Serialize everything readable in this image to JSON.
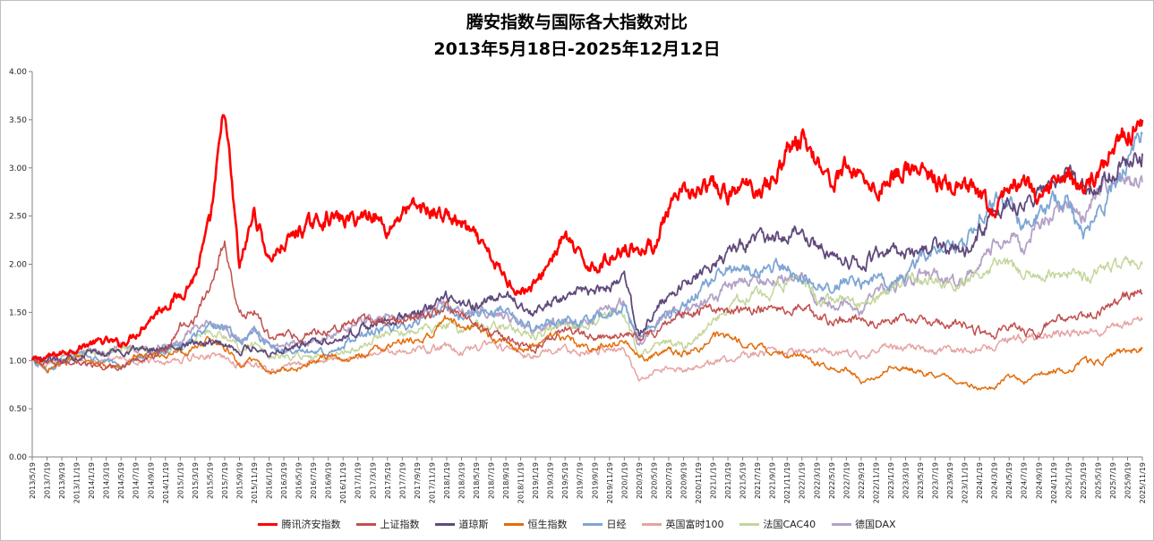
{
  "chart_data": {
    "type": "line",
    "title": "腾安指数与国际各大指数对比",
    "subtitle": "2013年5月18日-2025年12月12日",
    "xlabel": "",
    "ylabel": "",
    "ylim": [
      0,
      4
    ],
    "yticks": [
      "0.00",
      "0.50",
      "1.00",
      "1.50",
      "2.00",
      "2.50",
      "3.00",
      "3.50",
      "4.00"
    ],
    "grid": false,
    "legend_position": "bottom",
    "x": [
      "2013/5/19",
      "2013/7/19",
      "2013/9/19",
      "2013/11/19",
      "2014/1/19",
      "2014/3/19",
      "2014/5/19",
      "2014/7/19",
      "2014/9/19",
      "2014/11/19",
      "2015/1/19",
      "2015/3/19",
      "2015/5/19",
      "2015/7/19",
      "2015/9/19",
      "2015/11/19",
      "2016/1/19",
      "2016/3/19",
      "2016/5/19",
      "2016/7/19",
      "2016/9/19",
      "2016/11/19",
      "2017/1/19",
      "2017/3/19",
      "2017/5/19",
      "2017/7/19",
      "2017/9/19",
      "2017/11/19",
      "2018/1/19",
      "2018/3/19",
      "2018/5/19",
      "2018/7/19",
      "2018/9/19",
      "2018/11/19",
      "2019/1/19",
      "2019/3/19",
      "2019/5/19",
      "2019/7/19",
      "2019/9/19",
      "2019/11/19",
      "2020/1/19",
      "2020/3/19",
      "2020/5/19",
      "2020/7/19",
      "2020/9/19",
      "2020/11/19",
      "2021/1/19",
      "2021/3/19",
      "2021/5/19",
      "2021/7/19",
      "2021/9/19",
      "2021/11/19",
      "2022/1/19",
      "2022/3/19",
      "2022/5/19",
      "2022/7/19",
      "2022/9/19",
      "2022/11/19",
      "2023/1/19",
      "2023/3/19",
      "2023/5/19",
      "2023/7/19",
      "2023/9/19",
      "2023/11/19",
      "2024/1/19",
      "2024/3/19",
      "2024/5/19",
      "2024/7/19",
      "2024/9/19",
      "2024/11/19",
      "2025/1/19",
      "2025/3/19",
      "2025/5/19",
      "2025/7/19",
      "2025/9/19",
      "2025/11/19"
    ],
    "series": [
      {
        "name": "腾讯济安指数",
        "color": "#ff0000",
        "width": 2.6,
        "values": [
          1.0,
          1.03,
          1.08,
          1.13,
          1.18,
          1.2,
          1.17,
          1.28,
          1.45,
          1.58,
          1.68,
          1.88,
          2.4,
          3.6,
          1.95,
          2.55,
          2.05,
          2.2,
          2.35,
          2.42,
          2.5,
          2.45,
          2.48,
          2.55,
          2.35,
          2.55,
          2.58,
          2.55,
          2.5,
          2.42,
          2.25,
          2.05,
          1.85,
          1.72,
          1.78,
          2.05,
          2.3,
          2.05,
          1.98,
          2.05,
          2.2,
          2.15,
          2.2,
          2.55,
          2.72,
          2.75,
          2.8,
          2.7,
          2.8,
          2.8,
          2.85,
          3.2,
          3.3,
          3.1,
          2.85,
          3.0,
          2.95,
          2.75,
          2.92,
          3.0,
          2.95,
          2.88,
          2.8,
          2.78,
          2.7,
          2.5,
          2.82,
          2.88,
          2.62,
          2.88,
          2.98,
          2.75,
          2.95,
          3.2,
          3.4,
          3.5
        ]
      },
      {
        "name": "上证指数",
        "color": "#c0504d",
        "width": 1.5,
        "values": [
          1.0,
          0.95,
          0.98,
          1.0,
          0.95,
          0.92,
          0.93,
          1.0,
          1.05,
          1.1,
          1.35,
          1.45,
          1.75,
          2.25,
          1.45,
          1.52,
          1.25,
          1.28,
          1.25,
          1.3,
          1.32,
          1.38,
          1.4,
          1.42,
          1.4,
          1.42,
          1.45,
          1.48,
          1.55,
          1.45,
          1.38,
          1.3,
          1.22,
          1.15,
          1.12,
          1.25,
          1.35,
          1.28,
          1.25,
          1.25,
          1.3,
          1.25,
          1.28,
          1.45,
          1.5,
          1.52,
          1.55,
          1.5,
          1.52,
          1.55,
          1.55,
          1.55,
          1.58,
          1.45,
          1.4,
          1.45,
          1.42,
          1.4,
          1.4,
          1.45,
          1.42,
          1.42,
          1.38,
          1.35,
          1.3,
          1.25,
          1.35,
          1.3,
          1.28,
          1.45,
          1.45,
          1.45,
          1.5,
          1.58,
          1.68,
          1.7
        ]
      },
      {
        "name": "道琼斯",
        "color": "#604a7b",
        "width": 1.8,
        "values": [
          1.0,
          1.0,
          1.02,
          1.05,
          1.08,
          1.08,
          1.1,
          1.12,
          1.12,
          1.15,
          1.15,
          1.18,
          1.2,
          1.18,
          1.1,
          1.15,
          1.08,
          1.12,
          1.15,
          1.2,
          1.22,
          1.25,
          1.32,
          1.38,
          1.4,
          1.45,
          1.48,
          1.55,
          1.65,
          1.58,
          1.58,
          1.62,
          1.68,
          1.6,
          1.48,
          1.62,
          1.68,
          1.7,
          1.7,
          1.78,
          1.85,
          1.25,
          1.5,
          1.65,
          1.8,
          1.9,
          2.0,
          2.1,
          2.2,
          2.25,
          2.25,
          2.3,
          2.35,
          2.2,
          2.1,
          2.05,
          2.0,
          2.1,
          2.15,
          2.1,
          2.1,
          2.2,
          2.15,
          2.1,
          2.35,
          2.5,
          2.6,
          2.6,
          2.75,
          2.85,
          2.95,
          2.8,
          2.8,
          2.95,
          3.05,
          3.15
        ]
      },
      {
        "name": "恒生指数",
        "color": "#e46c0a",
        "width": 1.5,
        "values": [
          1.0,
          0.92,
          0.98,
          1.02,
          0.98,
          0.95,
          0.97,
          1.05,
          1.05,
          1.05,
          1.1,
          1.12,
          1.22,
          1.15,
          0.95,
          1.0,
          0.88,
          0.9,
          0.92,
          1.0,
          1.05,
          1.0,
          1.05,
          1.1,
          1.15,
          1.18,
          1.22,
          1.25,
          1.45,
          1.35,
          1.35,
          1.25,
          1.18,
          1.12,
          1.15,
          1.25,
          1.25,
          1.15,
          1.12,
          1.18,
          1.2,
          1.02,
          1.05,
          1.1,
          1.08,
          1.12,
          1.25,
          1.25,
          1.18,
          1.15,
          1.1,
          1.05,
          1.05,
          0.98,
          0.92,
          0.92,
          0.78,
          0.82,
          0.95,
          0.92,
          0.88,
          0.85,
          0.82,
          0.75,
          0.72,
          0.72,
          0.85,
          0.78,
          0.85,
          0.9,
          0.88,
          1.0,
          0.98,
          1.05,
          1.1,
          1.12
        ]
      },
      {
        "name": "日经",
        "color": "#7ea6d4",
        "width": 1.8,
        "values": [
          1.0,
          0.9,
          0.98,
          1.05,
          1.02,
          0.98,
          0.95,
          1.05,
          1.05,
          1.12,
          1.15,
          1.25,
          1.35,
          1.35,
          1.2,
          1.3,
          1.15,
          1.1,
          1.08,
          1.08,
          1.1,
          1.15,
          1.28,
          1.3,
          1.32,
          1.35,
          1.38,
          1.5,
          1.55,
          1.45,
          1.5,
          1.48,
          1.55,
          1.42,
          1.32,
          1.4,
          1.42,
          1.4,
          1.45,
          1.52,
          1.55,
          1.22,
          1.4,
          1.5,
          1.55,
          1.7,
          1.85,
          1.95,
          1.95,
          1.9,
          2.0,
          1.95,
          1.85,
          1.8,
          1.75,
          1.85,
          1.8,
          1.85,
          1.82,
          1.85,
          2.05,
          2.15,
          2.2,
          2.2,
          2.5,
          2.65,
          2.6,
          2.4,
          2.5,
          2.65,
          2.65,
          2.3,
          2.55,
          2.75,
          3.1,
          3.35
        ]
      },
      {
        "name": "英国富时100",
        "color": "#e6a3a3",
        "width": 1.5,
        "values": [
          1.0,
          0.98,
          1.0,
          1.02,
          1.0,
          0.98,
          1.02,
          1.02,
          1.0,
          1.0,
          1.02,
          1.05,
          1.05,
          1.02,
          0.95,
          0.98,
          0.9,
          0.92,
          0.95,
          1.0,
          1.02,
          1.0,
          1.05,
          1.08,
          1.1,
          1.1,
          1.1,
          1.12,
          1.15,
          1.08,
          1.15,
          1.15,
          1.12,
          1.05,
          1.05,
          1.1,
          1.12,
          1.08,
          1.1,
          1.12,
          1.12,
          0.78,
          0.9,
          0.92,
          0.9,
          0.95,
          1.0,
          1.02,
          1.05,
          1.08,
          1.08,
          1.1,
          1.1,
          1.1,
          1.08,
          1.1,
          1.05,
          1.1,
          1.15,
          1.12,
          1.12,
          1.1,
          1.12,
          1.1,
          1.12,
          1.15,
          1.22,
          1.22,
          1.25,
          1.28,
          1.3,
          1.28,
          1.3,
          1.35,
          1.4,
          1.42
        ]
      },
      {
        "name": "法国CAC40",
        "color": "#c3d69b",
        "width": 1.5,
        "values": [
          1.0,
          0.95,
          1.02,
          1.08,
          1.1,
          1.08,
          1.12,
          1.12,
          1.08,
          1.1,
          1.1,
          1.22,
          1.3,
          1.25,
          1.12,
          1.18,
          1.05,
          1.05,
          1.05,
          1.02,
          1.05,
          1.08,
          1.15,
          1.2,
          1.3,
          1.28,
          1.3,
          1.32,
          1.38,
          1.3,
          1.4,
          1.35,
          1.35,
          1.28,
          1.25,
          1.35,
          1.38,
          1.38,
          1.4,
          1.48,
          1.5,
          1.05,
          1.15,
          1.2,
          1.15,
          1.25,
          1.4,
          1.55,
          1.65,
          1.7,
          1.7,
          1.8,
          1.8,
          1.65,
          1.62,
          1.65,
          1.55,
          1.65,
          1.75,
          1.85,
          1.85,
          1.8,
          1.75,
          1.8,
          1.9,
          2.0,
          2.0,
          1.9,
          1.88,
          1.9,
          1.92,
          1.85,
          1.95,
          1.98,
          2.0,
          2.0
        ]
      },
      {
        "name": "德国DAX",
        "color": "#b3a2c7",
        "width": 1.8,
        "values": [
          1.0,
          0.98,
          1.02,
          1.1,
          1.12,
          1.08,
          1.15,
          1.12,
          1.08,
          1.15,
          1.2,
          1.35,
          1.4,
          1.35,
          1.2,
          1.3,
          1.15,
          1.15,
          1.2,
          1.2,
          1.25,
          1.3,
          1.38,
          1.42,
          1.48,
          1.45,
          1.48,
          1.55,
          1.6,
          1.48,
          1.55,
          1.5,
          1.48,
          1.35,
          1.28,
          1.38,
          1.42,
          1.4,
          1.45,
          1.55,
          1.6,
          1.15,
          1.35,
          1.5,
          1.48,
          1.55,
          1.65,
          1.75,
          1.8,
          1.85,
          1.82,
          1.85,
          1.9,
          1.65,
          1.6,
          1.6,
          1.5,
          1.7,
          1.75,
          1.8,
          1.9,
          1.9,
          1.8,
          1.85,
          2.0,
          2.2,
          2.25,
          2.2,
          2.4,
          2.5,
          2.6,
          2.5,
          2.8,
          2.9,
          2.85,
          2.85
        ]
      }
    ]
  }
}
